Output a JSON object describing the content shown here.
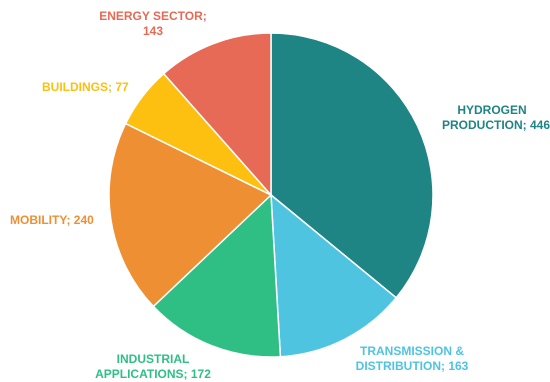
{
  "chart_data": {
    "type": "pie",
    "start_angle_deg": 0,
    "direction": "clockwise",
    "slices": [
      {
        "label_lines": [
          "HYDROGEN",
          "PRODUCTION; 446"
        ],
        "category": "HYDROGEN PRODUCTION",
        "value": 446,
        "color": "#1f8484"
      },
      {
        "label_lines": [
          "TRANSMISSION &",
          "DISTRIBUTION; 163"
        ],
        "category": "TRANSMISSION & DISTRIBUTION",
        "value": 163,
        "color": "#4fc4e0"
      },
      {
        "label_lines": [
          "INDUSTRIAL",
          "APPLICATIONS; 172"
        ],
        "category": "INDUSTRIAL APPLICATIONS",
        "value": 172,
        "color": "#2fbf85"
      },
      {
        "label_lines": [
          "MOBILITY; 240"
        ],
        "category": "MOBILITY",
        "value": 240,
        "color": "#ee8f34"
      },
      {
        "label_lines": [
          "BUILDINGS; 77"
        ],
        "category": "BUILDINGS",
        "value": 77,
        "color": "#fdbf10"
      },
      {
        "label_lines": [
          "ENERGY SECTOR;",
          "143"
        ],
        "category": "ENERGY SECTOR",
        "value": 143,
        "color": "#e66a55"
      }
    ]
  }
}
